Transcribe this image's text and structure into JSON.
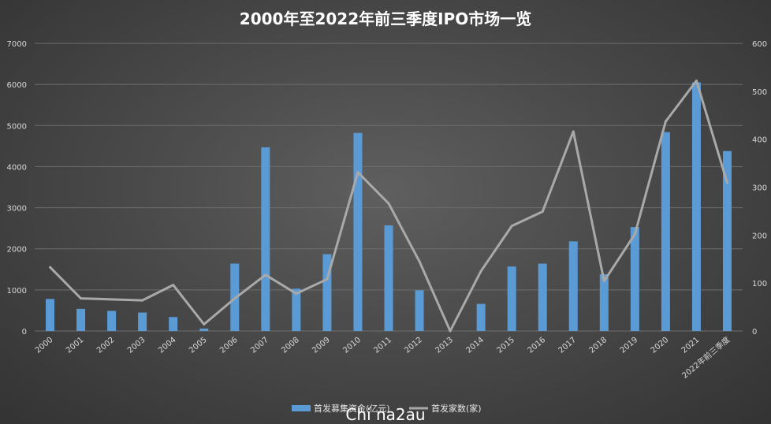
{
  "chart_data": {
    "type": "bar",
    "title": "2000年至2022年前三季度IPO市场一览",
    "categories": [
      "2000",
      "2001",
      "2002",
      "2003",
      "2004",
      "2005",
      "2006",
      "2007",
      "2008",
      "2009",
      "2010",
      "2011",
      "2012",
      "2013",
      "2014",
      "2015",
      "2016",
      "2017",
      "2018",
      "2019",
      "2020",
      "2021",
      "2022年前三季度"
    ],
    "y_left": {
      "min": 0,
      "max": 7000,
      "step": 1000,
      "ticks": [
        "0",
        "1000",
        "2000",
        "3000",
        "4000",
        "5000",
        "6000",
        "7000"
      ]
    },
    "y_right": {
      "min": 0,
      "max": 600,
      "step": 100,
      "ticks": [
        "0",
        "100",
        "200",
        "300",
        "400",
        "500",
        "600"
      ]
    },
    "series": [
      {
        "name": "首发募集资金(亿元)",
        "type": "bar",
        "axis": "left",
        "color": "#5b9bd5",
        "values": [
          780,
          540,
          490,
          450,
          340,
          60,
          1640,
          4470,
          1030,
          1870,
          4820,
          2570,
          990,
          0,
          660,
          1570,
          1640,
          2180,
          1380,
          2530,
          4840,
          6050,
          4380
        ]
      },
      {
        "name": "首发家数(家)",
        "type": "line",
        "axis": "right",
        "color": "#a9a9a9",
        "values": [
          133,
          68,
          66,
          64,
          96,
          14,
          68,
          117,
          78,
          108,
          331,
          266,
          145,
          0,
          125,
          219,
          249,
          416,
          104,
          202,
          437,
          522,
          309
        ]
      }
    ],
    "legend_position": "bottom",
    "grid": true,
    "watermark": "Chi na2au"
  }
}
